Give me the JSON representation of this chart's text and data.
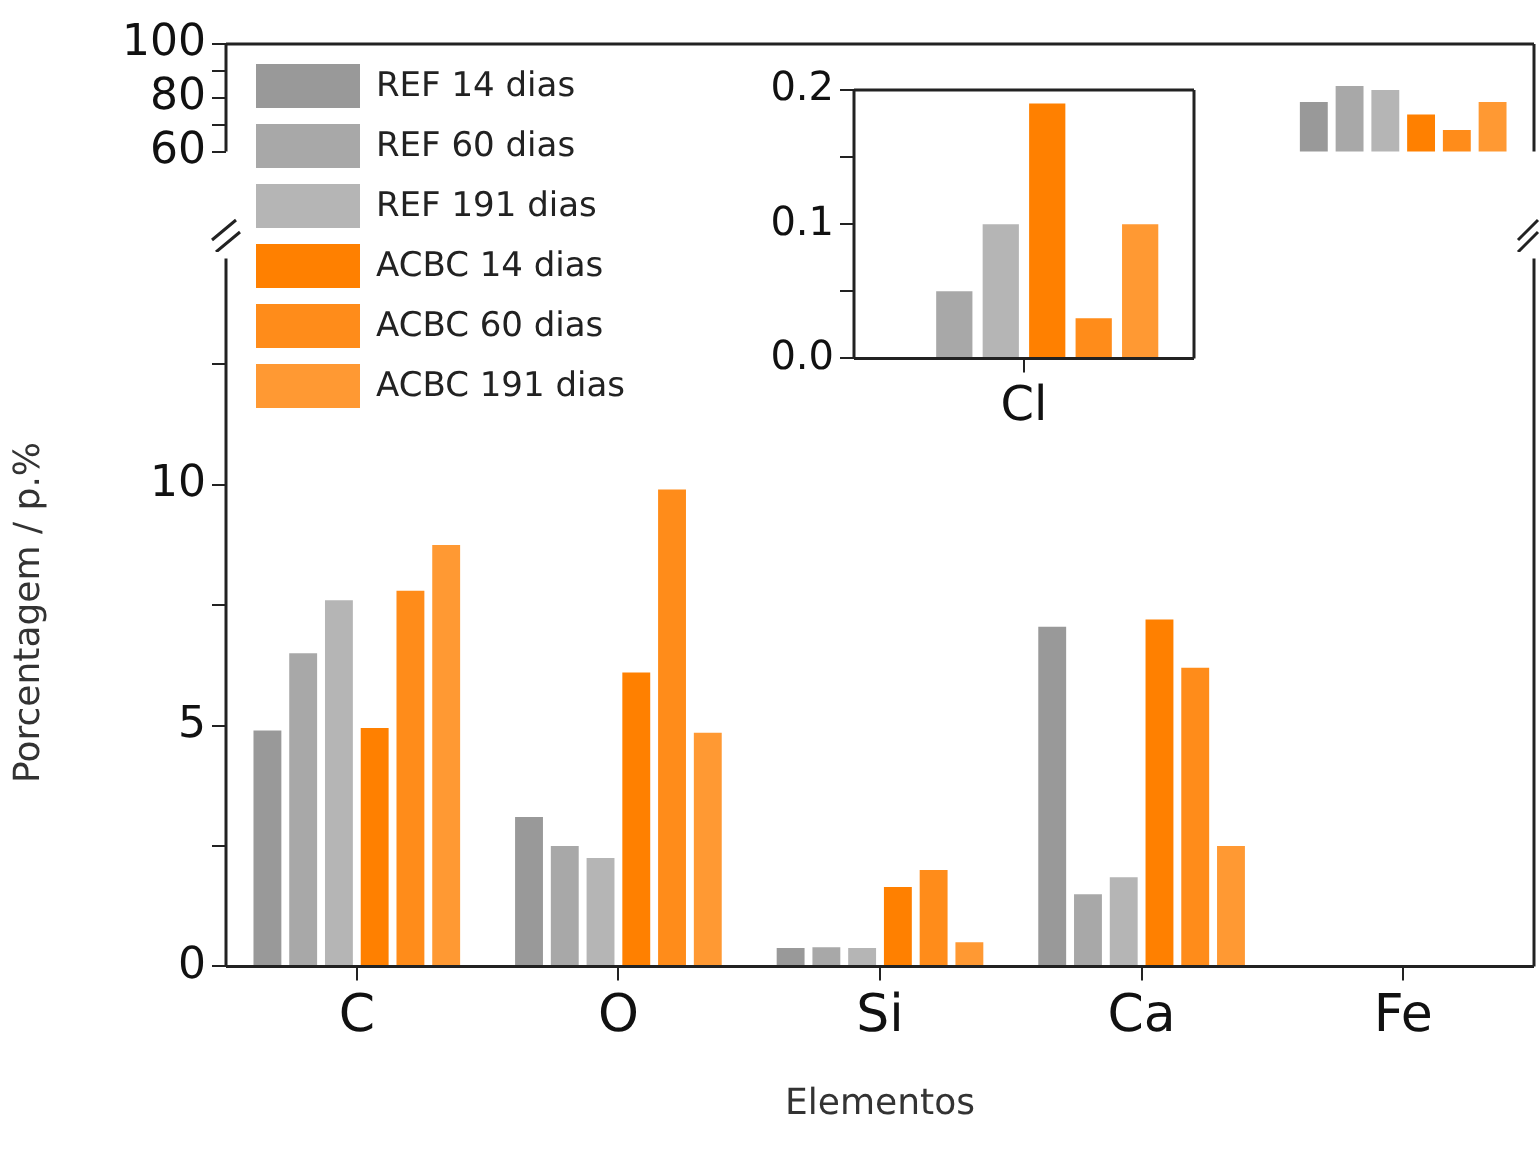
{
  "chart_data": [
    {
      "type": "bar",
      "categories": [
        null,
        null,
        null,
        null,
        null
      ],
      "ylim": [
        60,
        100
      ],
      "yticks": [
        60,
        {
          "value": 70,
          "label": null
        },
        80,
        {
          "value": 90,
          "label": null
        },
        100
      ],
      "grid": false,
      "series": [
        {
          "color": "#999999",
          "values": [
            null,
            null,
            null,
            null,
            78.4
          ]
        },
        {
          "color": "#a8a8a8",
          "values": [
            null,
            null,
            null,
            null,
            84.4
          ]
        },
        {
          "color": "#b5b5b5",
          "values": [
            null,
            null,
            null,
            null,
            82.9
          ]
        },
        {
          "color": "#ff8000",
          "values": [
            null,
            null,
            null,
            null,
            73.8
          ]
        },
        {
          "color": "#ff8c1a",
          "values": [
            null,
            null,
            null,
            null,
            68
          ]
        },
        {
          "color": "#ff9933",
          "values": [
            null,
            null,
            null,
            null,
            78.4
          ]
        }
      ]
    },
    {
      "type": "bar",
      "categories": [
        "C",
        "O",
        "Si",
        "Ca",
        "Fe"
      ],
      "xlabel": "Elementos",
      "ylabel": "Porcentagem / p.%",
      "ylim": [
        0,
        14.7
      ],
      "yticks": [
        0,
        {
          "value": 2.5,
          "label": null
        },
        5,
        {
          "value": 7.5,
          "label": null
        },
        10,
        {
          "value": 12.5,
          "label": null
        }
      ],
      "grid": false,
      "legend": "top left",
      "series": [
        {
          "name": "REF 14 dias",
          "color": "#999999",
          "values": [
            4.9,
            3.1,
            0.38,
            7.05,
            null
          ]
        },
        {
          "name": "REF 60 dias",
          "color": "#a8a8a8",
          "values": [
            6.5,
            2.5,
            0.4,
            1.5,
            null
          ]
        },
        {
          "name": "REF 191 dias",
          "color": "#b5b5b5",
          "values": [
            7.6,
            2.25,
            0.38,
            1.85,
            null
          ]
        },
        {
          "name": "ACBC 14 dias",
          "color": "#ff8000",
          "values": [
            4.95,
            6.1,
            1.65,
            7.2,
            null
          ]
        },
        {
          "name": "ACBC 60 dias",
          "color": "#ff8c1a",
          "values": [
            7.8,
            9.9,
            2.0,
            6.2,
            null
          ]
        },
        {
          "name": "ACBC 191 dias",
          "color": "#ff9933",
          "values": [
            8.75,
            4.85,
            0.5,
            2.5,
            null
          ]
        }
      ]
    },
    {
      "type": "bar",
      "categories": [
        "Cl"
      ],
      "ylim": [
        0,
        0.2
      ],
      "yticks": [
        {
          "value": 0,
          "label": "0.0"
        },
        {
          "value": 0.05,
          "label": null
        },
        0.1,
        {
          "value": 0.15,
          "label": null
        },
        0.2
      ],
      "grid": false,
      "series": [
        {
          "color": "#999999",
          "values": [
            null
          ]
        },
        {
          "color": "#a8a8a8",
          "values": [
            0.05
          ]
        },
        {
          "color": "#b5b5b5",
          "values": [
            0.1
          ]
        },
        {
          "color": "#ff8000",
          "values": [
            0.19
          ]
        },
        {
          "color": "#ff8c1a",
          "values": [
            0.03
          ]
        },
        {
          "color": "#ff9933",
          "values": [
            0.1
          ]
        }
      ]
    }
  ]
}
